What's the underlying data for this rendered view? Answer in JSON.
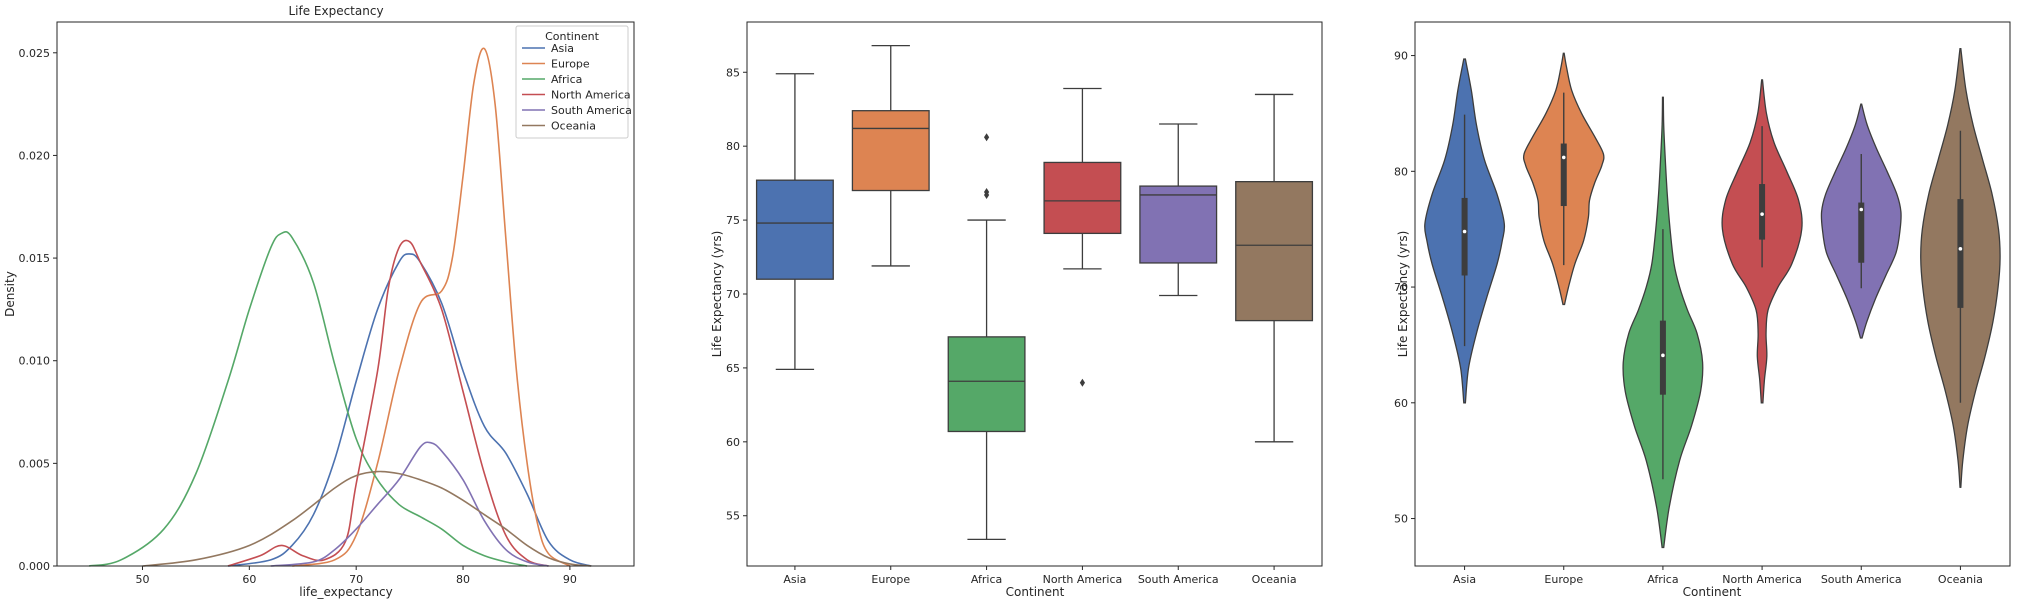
{
  "chart_data": [
    {
      "type": "line",
      "subtype": "kde",
      "title": "Life Expectancy",
      "xlabel": "life_expectancy",
      "ylabel": "Density",
      "xlim": [
        42,
        96
      ],
      "ylim": [
        0,
        0.0265
      ],
      "xticks": [
        50,
        60,
        70,
        80,
        90
      ],
      "yticks": [
        0.0,
        0.005,
        0.01,
        0.015,
        0.02,
        0.025
      ],
      "ytick_labels": [
        "0.000",
        "0.005",
        "0.010",
        "0.015",
        "0.020",
        "0.025"
      ],
      "grid": false,
      "legend": {
        "title": "Continent",
        "position": "top-right"
      },
      "series": [
        {
          "name": "Asia",
          "color": "#4c72b0",
          "points": [
            [
              58,
              0
            ],
            [
              62,
              0.0003
            ],
            [
              64,
              0.001
            ],
            [
              66,
              0.0025
            ],
            [
              68,
              0.0052
            ],
            [
              70,
              0.009
            ],
            [
              72,
              0.0125
            ],
            [
              74,
              0.0148
            ],
            [
              75,
              0.0152
            ],
            [
              76,
              0.0148
            ],
            [
              78,
              0.0128
            ],
            [
              80,
              0.0095
            ],
            [
              82,
              0.0068
            ],
            [
              84,
              0.0055
            ],
            [
              86,
              0.0035
            ],
            [
              88,
              0.0012
            ],
            [
              90,
              0.0003
            ],
            [
              92,
              0
            ]
          ]
        },
        {
          "name": "Europe",
          "color": "#dd8452",
          "points": [
            [
              64,
              0
            ],
            [
              68,
              0.0003
            ],
            [
              70,
              0.0015
            ],
            [
              72,
              0.005
            ],
            [
              74,
              0.0095
            ],
            [
              76,
              0.0128
            ],
            [
              78,
              0.0134
            ],
            [
              79,
              0.015
            ],
            [
              80,
              0.019
            ],
            [
              81,
              0.0235
            ],
            [
              82,
              0.0252
            ],
            [
              83,
              0.0225
            ],
            [
              84,
              0.016
            ],
            [
              85,
              0.0095
            ],
            [
              86,
              0.005
            ],
            [
              87,
              0.002
            ],
            [
              88,
              0.0006
            ],
            [
              90,
              0
            ]
          ]
        },
        {
          "name": "Africa",
          "color": "#55a868",
          "points": [
            [
              45,
              0
            ],
            [
              48,
              0.0003
            ],
            [
              52,
              0.0018
            ],
            [
              55,
              0.0045
            ],
            [
              58,
              0.009
            ],
            [
              60,
              0.0125
            ],
            [
              62,
              0.0155
            ],
            [
              63,
              0.0162
            ],
            [
              64,
              0.016
            ],
            [
              66,
              0.0138
            ],
            [
              68,
              0.0098
            ],
            [
              70,
              0.0062
            ],
            [
              72,
              0.0042
            ],
            [
              74,
              0.003
            ],
            [
              76,
              0.0024
            ],
            [
              78,
              0.0018
            ],
            [
              80,
              0.001
            ],
            [
              82,
              0.0005
            ],
            [
              84,
              0.0002
            ],
            [
              86,
              0
            ]
          ]
        },
        {
          "name": "North America",
          "color": "#c44e52",
          "points": [
            [
              58,
              0
            ],
            [
              61,
              0.0005
            ],
            [
              63,
              0.001
            ],
            [
              65,
              0.0005
            ],
            [
              67,
              0.0003
            ],
            [
              69,
              0.0012
            ],
            [
              70,
              0.004
            ],
            [
              72,
              0.0095
            ],
            [
              73,
              0.0135
            ],
            [
              74,
              0.0155
            ],
            [
              75,
              0.0158
            ],
            [
              76,
              0.0148
            ],
            [
              78,
              0.0125
            ],
            [
              80,
              0.0085
            ],
            [
              82,
              0.0045
            ],
            [
              84,
              0.0015
            ],
            [
              86,
              0.0003
            ],
            [
              88,
              0
            ]
          ]
        },
        {
          "name": "South America",
          "color": "#8172b3",
          "points": [
            [
              62,
              0
            ],
            [
              66,
              0.0002
            ],
            [
              68,
              0.0008
            ],
            [
              70,
              0.0018
            ],
            [
              72,
              0.003
            ],
            [
              74,
              0.0042
            ],
            [
              76,
              0.0058
            ],
            [
              77,
              0.006
            ],
            [
              78,
              0.0056
            ],
            [
              80,
              0.0042
            ],
            [
              82,
              0.0022
            ],
            [
              84,
              0.0008
            ],
            [
              86,
              0.0002
            ],
            [
              88,
              0
            ]
          ]
        },
        {
          "name": "Oceania",
          "color": "#937860",
          "points": [
            [
              50,
              0
            ],
            [
              55,
              0.0003
            ],
            [
              60,
              0.001
            ],
            [
              64,
              0.0022
            ],
            [
              68,
              0.0038
            ],
            [
              70,
              0.0044
            ],
            [
              72,
              0.0046
            ],
            [
              74,
              0.0045
            ],
            [
              76,
              0.0042
            ],
            [
              78,
              0.0038
            ],
            [
              80,
              0.0032
            ],
            [
              82,
              0.0025
            ],
            [
              84,
              0.0018
            ],
            [
              86,
              0.001
            ],
            [
              88,
              0.0004
            ],
            [
              90,
              0.0001
            ],
            [
              92,
              0
            ]
          ]
        }
      ]
    },
    {
      "type": "box",
      "xlabel": "Continent",
      "ylabel": "Life Expectancy (yrs)",
      "ylim": [
        51.6,
        88.4
      ],
      "yticks": [
        55,
        60,
        65,
        70,
        75,
        80,
        85
      ],
      "categories": [
        "Asia",
        "Europe",
        "Africa",
        "North America",
        "South America",
        "Oceania"
      ],
      "colors": [
        "#4c72b0",
        "#dd8452",
        "#55a868",
        "#c44e52",
        "#8172b3",
        "#937860"
      ],
      "boxes": [
        {
          "whisker_low": 64.9,
          "q1": 71.0,
          "median": 74.8,
          "q3": 77.7,
          "whisker_high": 84.9,
          "outliers": []
        },
        {
          "whisker_low": 71.9,
          "q1": 77.0,
          "median": 81.2,
          "q3": 82.4,
          "whisker_high": 86.8,
          "outliers": []
        },
        {
          "whisker_low": 53.4,
          "q1": 60.7,
          "median": 64.1,
          "q3": 67.1,
          "whisker_high": 75.0,
          "outliers": [
            76.7,
            76.9,
            80.6
          ]
        },
        {
          "whisker_low": 71.7,
          "q1": 74.1,
          "median": 76.3,
          "q3": 78.9,
          "whisker_high": 83.9,
          "outliers": [
            64.0
          ]
        },
        {
          "whisker_low": 69.9,
          "q1": 72.1,
          "median": 76.7,
          "q3": 77.3,
          "whisker_high": 81.5,
          "outliers": []
        },
        {
          "whisker_low": 60.0,
          "q1": 68.2,
          "median": 73.3,
          "q3": 77.6,
          "whisker_high": 83.5,
          "outliers": []
        }
      ]
    },
    {
      "type": "violin",
      "xlabel": "Continent",
      "ylabel": "Life Expectancy (yrs)",
      "ylim": [
        45.9,
        92.9
      ],
      "yticks": [
        50,
        60,
        70,
        80,
        90
      ],
      "categories": [
        "Asia",
        "Europe",
        "Africa",
        "North America",
        "South America",
        "Oceania"
      ],
      "colors": [
        "#4c72b0",
        "#dd8452",
        "#55a868",
        "#c44e52",
        "#8172b3",
        "#937860"
      ],
      "violins": [
        {
          "ymin": 60.0,
          "ymax": 89.7,
          "q1": 71.0,
          "median": 74.8,
          "q3": 77.7,
          "wlo": 64.9,
          "whi": 84.9,
          "density": [
            [
              60,
              0.02
            ],
            [
              63,
              0.1
            ],
            [
              66,
              0.3
            ],
            [
              69,
              0.55
            ],
            [
              72,
              0.82
            ],
            [
              74,
              0.95
            ],
            [
              75.5,
              1.0
            ],
            [
              78,
              0.82
            ],
            [
              81,
              0.5
            ],
            [
              84,
              0.3
            ],
            [
              87,
              0.17
            ],
            [
              89.7,
              0.02
            ]
          ]
        },
        {
          "ymin": 68.5,
          "ymax": 90.2,
          "q1": 77.0,
          "median": 81.2,
          "q3": 82.4,
          "wlo": 71.9,
          "whi": 86.8,
          "density": [
            [
              68.5,
              0.02
            ],
            [
              70,
              0.12
            ],
            [
              72,
              0.28
            ],
            [
              74,
              0.5
            ],
            [
              76,
              0.62
            ],
            [
              77.5,
              0.65
            ],
            [
              79,
              0.78
            ],
            [
              80.5,
              0.96
            ],
            [
              81.5,
              1.0
            ],
            [
              83,
              0.78
            ],
            [
              85,
              0.45
            ],
            [
              87,
              0.2
            ],
            [
              89,
              0.07
            ],
            [
              90.2,
              0.01
            ]
          ]
        },
        {
          "ymin": 47.5,
          "ymax": 86.4,
          "q1": 60.7,
          "median": 64.1,
          "q3": 67.1,
          "wlo": 53.4,
          "whi": 75.0,
          "density": [
            [
              47.5,
              0.02
            ],
            [
              51,
              0.16
            ],
            [
              55,
              0.42
            ],
            [
              58,
              0.72
            ],
            [
              61,
              0.95
            ],
            [
              63.5,
              1.0
            ],
            [
              66,
              0.86
            ],
            [
              68,
              0.62
            ],
            [
              70,
              0.42
            ],
            [
              72,
              0.28
            ],
            [
              75,
              0.18
            ],
            [
              78,
              0.11
            ],
            [
              81,
              0.06
            ],
            [
              84,
              0.02
            ],
            [
              86.4,
              0.01
            ]
          ]
        },
        {
          "ymin": 60.0,
          "ymax": 87.9,
          "q1": 74.1,
          "median": 76.3,
          "q3": 78.9,
          "wlo": 71.7,
          "whi": 83.9,
          "density": [
            [
              60,
              0.02
            ],
            [
              62,
              0.06
            ],
            [
              64,
              0.12
            ],
            [
              66,
              0.1
            ],
            [
              68,
              0.15
            ],
            [
              70,
              0.4
            ],
            [
              72,
              0.75
            ],
            [
              75,
              1.0
            ],
            [
              77.5,
              0.92
            ],
            [
              80,
              0.62
            ],
            [
              82.5,
              0.3
            ],
            [
              85,
              0.11
            ],
            [
              87.9,
              0.01
            ]
          ]
        },
        {
          "ymin": 65.6,
          "ymax": 85.8,
          "q1": 72.1,
          "median": 76.7,
          "q3": 77.3,
          "wlo": 69.9,
          "whi": 81.5,
          "density": [
            [
              65.6,
              0.02
            ],
            [
              67,
              0.14
            ],
            [
              69,
              0.36
            ],
            [
              71,
              0.62
            ],
            [
              73,
              0.88
            ],
            [
              75,
              0.98
            ],
            [
              76.5,
              1.0
            ],
            [
              78,
              0.9
            ],
            [
              80,
              0.65
            ],
            [
              82,
              0.38
            ],
            [
              84,
              0.15
            ],
            [
              85.8,
              0.01
            ]
          ]
        },
        {
          "ymin": 52.7,
          "ymax": 90.6,
          "q1": 68.2,
          "median": 73.3,
          "q3": 77.6,
          "wlo": 60.0,
          "whi": 83.5,
          "density": [
            [
              52.7,
              0.01
            ],
            [
              55,
              0.06
            ],
            [
              58,
              0.18
            ],
            [
              61,
              0.38
            ],
            [
              64,
              0.62
            ],
            [
              67,
              0.82
            ],
            [
              70,
              0.95
            ],
            [
              72.5,
              1.0
            ],
            [
              75,
              0.96
            ],
            [
              78,
              0.8
            ],
            [
              81,
              0.56
            ],
            [
              84,
              0.32
            ],
            [
              87,
              0.14
            ],
            [
              90.6,
              0.01
            ]
          ]
        }
      ]
    }
  ]
}
